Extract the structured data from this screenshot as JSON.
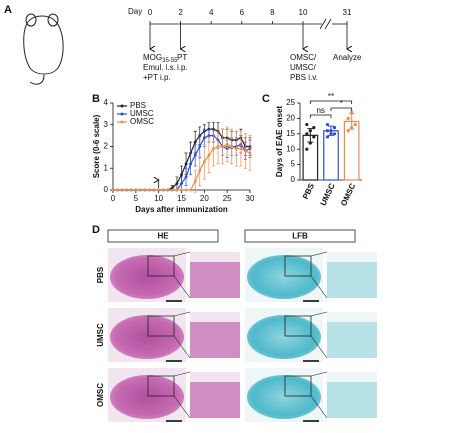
{
  "timeline": {
    "panel_label": "A",
    "day_label": "Day",
    "days": [
      0,
      2,
      4,
      6,
      8,
      10,
      31
    ],
    "event_0": {
      "line_1": "MOG",
      "subscript": "35-55",
      "line_2": "Emul. i.s.",
      "line_3": "+PT i.p."
    },
    "event_1": {
      "line_1": "PT",
      "line_2": "i.p."
    },
    "event_2": {
      "line_1": "OMSC/",
      "line_2": "UMSC/",
      "line_3": "PBS i.v."
    },
    "event_3": {
      "line_1": "Analyze"
    }
  },
  "chart_data": [
    {
      "type": "line",
      "panel_label": "B",
      "ylabel": "Score (0-6 scale)",
      "xlabel": "Days after immunization",
      "x": [
        0,
        1,
        2,
        3,
        4,
        5,
        6,
        7,
        8,
        9,
        10,
        11,
        12,
        13,
        14,
        15,
        16,
        17,
        18,
        19,
        20,
        21,
        22,
        23,
        24,
        25,
        26,
        27,
        28,
        29,
        30
      ],
      "xlim": [
        0,
        30
      ],
      "xticks": [
        0,
        5,
        10,
        15,
        20,
        25,
        30
      ],
      "ylim": [
        0,
        4
      ],
      "yticks": [
        0,
        1,
        2,
        3,
        4
      ],
      "legend": "upper left",
      "series": [
        {
          "name": "PBS",
          "color": "#222222",
          "values": [
            0,
            0,
            0,
            0,
            0,
            0,
            0,
            0,
            0,
            0,
            0,
            0,
            0,
            0.1,
            0.3,
            0.7,
            1.2,
            1.7,
            2.2,
            2.5,
            2.7,
            2.8,
            2.8,
            2.7,
            2.4,
            2.4,
            2.3,
            2.3,
            2.4,
            2.0,
            2.0
          ],
          "errors": [
            0,
            0,
            0,
            0,
            0,
            0,
            0,
            0,
            0,
            0,
            0,
            0,
            0,
            0.1,
            0.3,
            0.4,
            0.5,
            0.5,
            0.5,
            0.4,
            0.3,
            0.3,
            0.3,
            0.4,
            0.4,
            0.4,
            0.4,
            0.4,
            0.4,
            0.4,
            0.4
          ]
        },
        {
          "name": "UMSC",
          "color": "#2a4fd6",
          "values": [
            0,
            0,
            0,
            0,
            0,
            0,
            0,
            0,
            0,
            0,
            0,
            0,
            0,
            0,
            0,
            0.3,
            0.6,
            1.2,
            1.6,
            2.0,
            2.4,
            2.5,
            2.5,
            2.3,
            2.0,
            1.9,
            2.0,
            2.0,
            2.1,
            1.8,
            1.9
          ],
          "errors": [
            0,
            0,
            0,
            0,
            0,
            0,
            0,
            0,
            0,
            0,
            0,
            0,
            0,
            0,
            0,
            0.3,
            0.4,
            0.5,
            0.5,
            0.5,
            0.4,
            0.3,
            0.3,
            0.4,
            0.4,
            0.4,
            0.4,
            0.4,
            0.4,
            0.4,
            0.4
          ]
        },
        {
          "name": "OMSC",
          "color": "#f08a4b",
          "values": [
            0,
            0,
            0,
            0,
            0,
            0,
            0,
            0,
            0,
            0,
            0,
            0,
            0,
            0,
            0,
            0,
            0,
            0,
            0.4,
            0.9,
            1.3,
            1.6,
            1.9,
            2.0,
            2.0,
            2.1,
            2.0,
            1.9,
            1.9,
            1.8,
            1.7
          ],
          "errors": [
            0,
            0,
            0,
            0,
            0,
            0,
            0,
            0,
            0,
            0,
            0,
            0,
            0,
            0,
            0,
            0,
            0,
            0,
            0.5,
            0.7,
            0.8,
            0.8,
            0.8,
            0.8,
            0.8,
            0.8,
            0.8,
            0.8,
            0.8,
            0.8,
            0.8
          ]
        }
      ]
    },
    {
      "type": "dotbar",
      "panel_label": "C",
      "ylabel": "Days of EAE onset",
      "categories": [
        "PBS",
        "UMSC",
        "OMSC"
      ],
      "colors": [
        "#222222",
        "#2a4fd6",
        "#f08a4b"
      ],
      "ylim": [
        0,
        25
      ],
      "yticks": [
        0,
        5,
        10,
        15,
        20,
        25
      ],
      "means": [
        14.5,
        16,
        19
      ],
      "errors": [
        2.2,
        1.5,
        2.5
      ],
      "points": [
        [
          10,
          12,
          14,
          15,
          16,
          17,
          18
        ],
        [
          14,
          15,
          15,
          16,
          16,
          17,
          18
        ],
        [
          16,
          17,
          18,
          20,
          22
        ]
      ],
      "significance": [
        "**",
        "ns",
        "*"
      ]
    }
  ],
  "histology": {
    "panel_label": "D",
    "stains": [
      "HE",
      "LFB"
    ],
    "groups": [
      "PBS",
      "UMSC",
      "OMSC"
    ]
  }
}
